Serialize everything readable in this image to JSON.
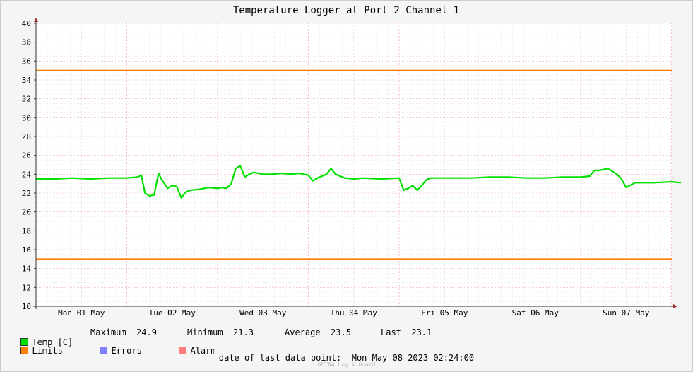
{
  "chart_data": {
    "type": "line",
    "title": "Temperature Logger at Port 2 Channel 1",
    "ylim": [
      10,
      40
    ],
    "yticks": [
      10,
      12,
      14,
      16,
      18,
      20,
      22,
      24,
      26,
      28,
      30,
      32,
      34,
      36,
      38,
      40
    ],
    "x_range_days": [
      0,
      7.1
    ],
    "x_tick_labels": [
      "Mon 01 May",
      "Tue 02 May",
      "Wed 03 May",
      "Thu 04 May",
      "Fri 05 May",
      "Sat 06 May",
      "Sun 07 May"
    ],
    "limits": {
      "upper": 35,
      "lower": 15
    },
    "series": [
      {
        "name": "Temp [C]",
        "color": "#00e000",
        "x": [
          0.0,
          0.2,
          0.4,
          0.6,
          0.8,
          1.0,
          1.12,
          1.16,
          1.2,
          1.25,
          1.3,
          1.35,
          1.38,
          1.45,
          1.5,
          1.55,
          1.6,
          1.65,
          1.7,
          1.8,
          1.9,
          2.0,
          2.05,
          2.1,
          2.15,
          2.2,
          2.25,
          2.3,
          2.35,
          2.4,
          2.5,
          2.6,
          2.7,
          2.8,
          2.9,
          3.0,
          3.05,
          3.1,
          3.2,
          3.25,
          3.3,
          3.4,
          3.5,
          3.6,
          3.8,
          4.0,
          4.05,
          4.1,
          4.15,
          4.2,
          4.25,
          4.3,
          4.35,
          4.4,
          4.6,
          4.8,
          5.0,
          5.2,
          5.4,
          5.6,
          5.8,
          6.0,
          6.1,
          6.15,
          6.2,
          6.3,
          6.4,
          6.45,
          6.5,
          6.6,
          6.8,
          7.0,
          7.1
        ],
        "values": [
          23.5,
          23.5,
          23.6,
          23.5,
          23.6,
          23.6,
          23.7,
          23.9,
          22.0,
          21.7,
          21.8,
          24.1,
          23.5,
          22.5,
          22.8,
          22.7,
          21.5,
          22.1,
          22.3,
          22.4,
          22.6,
          22.5,
          22.6,
          22.5,
          23.0,
          24.6,
          24.9,
          23.7,
          24.0,
          24.2,
          24.0,
          24.0,
          24.1,
          24.0,
          24.1,
          23.9,
          23.3,
          23.6,
          24.0,
          24.6,
          24.0,
          23.6,
          23.5,
          23.6,
          23.5,
          23.6,
          22.3,
          22.5,
          22.8,
          22.3,
          22.8,
          23.4,
          23.6,
          23.6,
          23.6,
          23.6,
          23.7,
          23.7,
          23.6,
          23.6,
          23.7,
          23.7,
          23.8,
          24.4,
          24.4,
          24.6,
          24.0,
          23.5,
          22.6,
          23.1,
          23.1,
          23.2,
          23.1
        ]
      }
    ],
    "legend": {
      "temp_label": "Temp [C]",
      "maximum_label": "Maximum",
      "maximum": "24.9",
      "minimum_label": "Minimum",
      "minimum": "21.3",
      "average_label": "Average",
      "average": "23.5",
      "last_label": "Last",
      "last": "23.1",
      "limits_label": "Limits",
      "errors_label": "Errors",
      "alarm_label": "Alarm"
    },
    "colors": {
      "temp": "#00e000",
      "limits": "#ff7f00",
      "errors": "#7f7fff",
      "alarm": "#ff7f7f"
    }
  },
  "footer": {
    "last_point_label": "date of last data point:",
    "last_point_value": "Mon May 08 2023 02:24:00",
    "watermark": "OCTAA Log & Guard"
  }
}
